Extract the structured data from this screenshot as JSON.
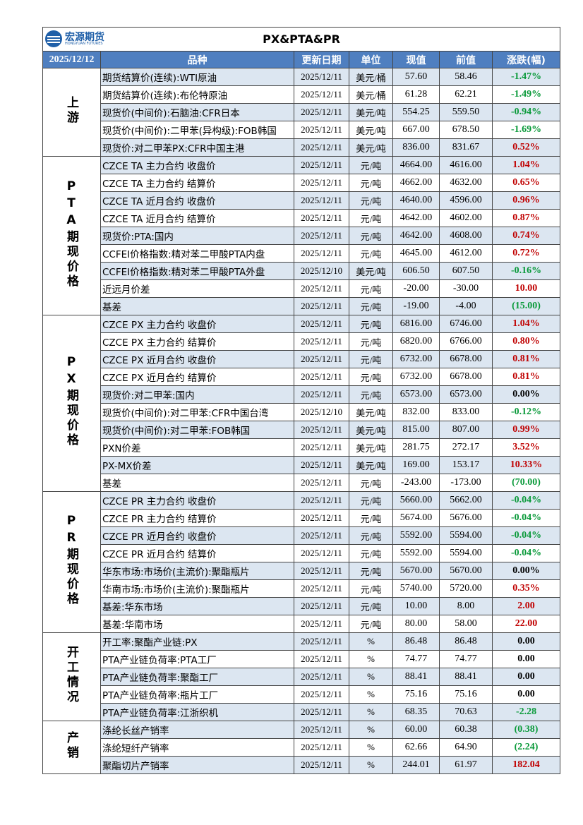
{
  "header": {
    "logo_name": "宏源期货",
    "logo_sub": "HONGYUAN FUTURES",
    "title": "PX&PTA&PR",
    "date": "2025/12/12",
    "columns": [
      "品种",
      "更新日期",
      "单位",
      "现值",
      "前值",
      "涨跌(幅)"
    ]
  },
  "groups": [
    {
      "label": "上游",
      "rows": [
        [
          "期货结算价(连续):WTI原油",
          "2025/12/11",
          "美元/桶",
          "57.60",
          "58.46",
          "-1.47%"
        ],
        [
          "期货结算价(连续):布伦特原油",
          "2025/12/11",
          "美元/桶",
          "61.28",
          "62.21",
          "-1.49%"
        ],
        [
          "现货价(中间价):石脑油:CFR日本",
          "2025/12/11",
          "美元/吨",
          "554.25",
          "559.50",
          "-0.94%"
        ],
        [
          "现货价(中间价):二甲苯(异构级):FOB韩国",
          "2025/12/11",
          "美元/吨",
          "667.00",
          "678.50",
          "-1.69%"
        ],
        [
          "现货价:对二甲苯PX:CFR中国主港",
          "2025/12/11",
          "美元/吨",
          "836.00",
          "831.67",
          "0.52%"
        ]
      ]
    },
    {
      "label": "PTA期现价格",
      "rows": [
        [
          "CZCE TA 主力合约 收盘价",
          "2025/12/11",
          "元/吨",
          "4664.00",
          "4616.00",
          "1.04%"
        ],
        [
          "CZCE TA 主力合约 结算价",
          "2025/12/11",
          "元/吨",
          "4662.00",
          "4632.00",
          "0.65%"
        ],
        [
          "CZCE TA 近月合约 收盘价",
          "2025/12/11",
          "元/吨",
          "4640.00",
          "4596.00",
          "0.96%"
        ],
        [
          "CZCE TA 近月合约 结算价",
          "2025/12/11",
          "元/吨",
          "4642.00",
          "4602.00",
          "0.87%"
        ],
        [
          "现货价:PTA:国内",
          "2025/12/11",
          "元/吨",
          "4642.00",
          "4608.00",
          "0.74%"
        ],
        [
          "CCFEI价格指数:精对苯二甲酸PTA内盘",
          "2025/12/11",
          "元/吨",
          "4645.00",
          "4612.00",
          "0.72%"
        ],
        [
          "CCFEI价格指数:精对苯二甲酸PTA外盘",
          "2025/12/10",
          "美元/吨",
          "606.50",
          "607.50",
          "-0.16%"
        ],
        [
          "近远月价差",
          "2025/12/11",
          "元/吨",
          "-20.00",
          "-30.00",
          "10.00"
        ],
        [
          "基差",
          "2025/12/11",
          "元/吨",
          "-19.00",
          "-4.00",
          "(15.00)"
        ]
      ]
    },
    {
      "label": "PX期现价格",
      "rows": [
        [
          "CZCE PX 主力合约 收盘价",
          "2025/12/11",
          "元/吨",
          "6816.00",
          "6746.00",
          "1.04%"
        ],
        [
          "CZCE PX 主力合约 结算价",
          "2025/12/11",
          "元/吨",
          "6820.00",
          "6766.00",
          "0.80%"
        ],
        [
          "CZCE PX 近月合约 收盘价",
          "2025/12/11",
          "元/吨",
          "6732.00",
          "6678.00",
          "0.81%"
        ],
        [
          "CZCE PX 近月合约 结算价",
          "2025/12/11",
          "元/吨",
          "6732.00",
          "6678.00",
          "0.81%"
        ],
        [
          "现货价:对二甲苯:国内",
          "2025/12/11",
          "元/吨",
          "6573.00",
          "6573.00",
          "0.00%"
        ],
        [
          "现货价(中间价):对二甲苯:CFR中国台湾",
          "2025/12/10",
          "美元/吨",
          "832.00",
          "833.00",
          "-0.12%"
        ],
        [
          "现货价(中间价):对二甲苯:FOB韩国",
          "2025/12/11",
          "美元/吨",
          "815.00",
          "807.00",
          "0.99%"
        ],
        [
          "PXN价差",
          "2025/12/11",
          "美元/吨",
          "281.75",
          "272.17",
          "3.52%"
        ],
        [
          "PX-MX价差",
          "2025/12/11",
          "美元/吨",
          "169.00",
          "153.17",
          "10.33%"
        ],
        [
          "基差",
          "2025/12/11",
          "元/吨",
          "-243.00",
          "-173.00",
          "(70.00)"
        ]
      ]
    },
    {
      "label": "PR期现价格",
      "rows": [
        [
          "CZCE PR 主力合约 收盘价",
          "2025/12/11",
          "元/吨",
          "5660.00",
          "5662.00",
          "-0.04%"
        ],
        [
          "CZCE PR 主力合约 结算价",
          "2025/12/11",
          "元/吨",
          "5674.00",
          "5676.00",
          "-0.04%"
        ],
        [
          "CZCE PR 近月合约 收盘价",
          "2025/12/11",
          "元/吨",
          "5592.00",
          "5594.00",
          "-0.04%"
        ],
        [
          "CZCE PR 近月合约 结算价",
          "2025/12/11",
          "元/吨",
          "5592.00",
          "5594.00",
          "-0.04%"
        ],
        [
          "华东市场:市场价(主流价):聚酯瓶片",
          "2025/12/11",
          "元/吨",
          "5670.00",
          "5670.00",
          "0.00%"
        ],
        [
          "华南市场:市场价(主流价):聚酯瓶片",
          "2025/12/11",
          "元/吨",
          "5740.00",
          "5720.00",
          "0.35%"
        ],
        [
          "基差:华东市场",
          "2025/12/11",
          "元/吨",
          "10.00",
          "8.00",
          "2.00"
        ],
        [
          "基差:华南市场",
          "2025/12/11",
          "元/吨",
          "80.00",
          "58.00",
          "22.00"
        ]
      ]
    },
    {
      "label": "开工情况",
      "rows": [
        [
          "开工率:聚酯产业链:PX",
          "2025/12/11",
          "%",
          "86.48",
          "86.48",
          "0.00"
        ],
        [
          "PTA产业链负荷率:PTA工厂",
          "2025/12/11",
          "%",
          "74.77",
          "74.77",
          "0.00"
        ],
        [
          "PTA产业链负荷率:聚酯工厂",
          "2025/12/11",
          "%",
          "88.41",
          "88.41",
          "0.00"
        ],
        [
          "PTA产业链负荷率:瓶片工厂",
          "2025/12/11",
          "%",
          "75.16",
          "75.16",
          "0.00"
        ],
        [
          "PTA产业链负荷率:江浙织机",
          "2025/12/11",
          "%",
          "68.35",
          "70.63",
          "-2.28"
        ]
      ]
    },
    {
      "label": "产销",
      "rows": [
        [
          "涤纶长丝产销率",
          "2025/12/11",
          "%",
          "60.00",
          "60.38",
          "(0.38)"
        ],
        [
          "涤纶短纤产销率",
          "2025/12/11",
          "%",
          "62.66",
          "64.90",
          "(2.24)"
        ],
        [
          "聚酯切片产销率",
          "2025/12/11",
          "%",
          "244.01",
          "61.97",
          "182.04"
        ]
      ]
    }
  ]
}
